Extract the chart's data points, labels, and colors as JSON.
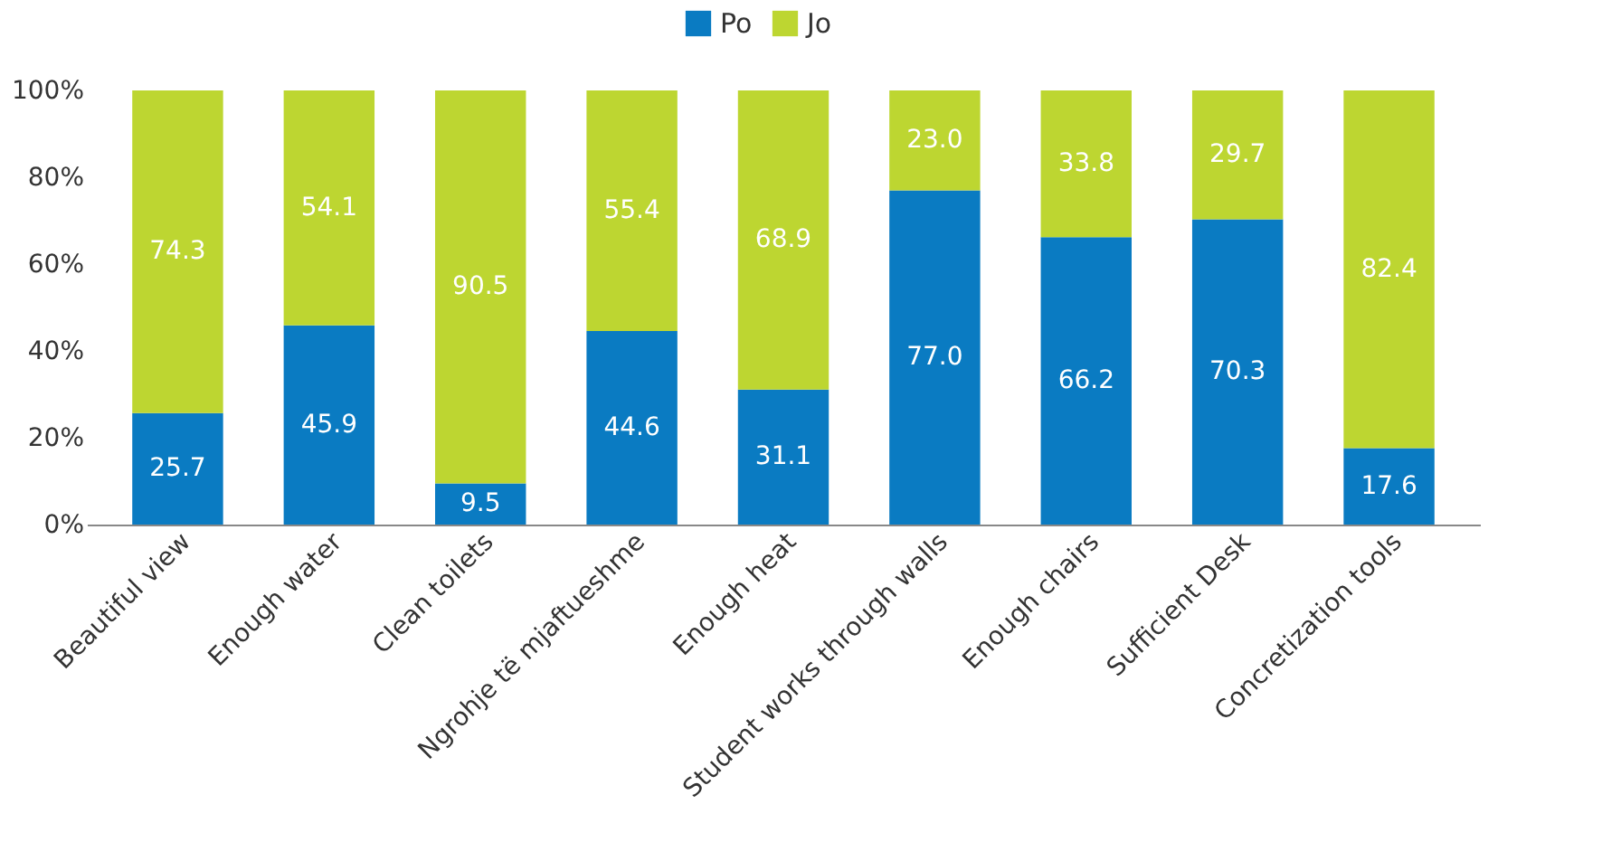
{
  "chart_data": {
    "type": "bar",
    "stacked": true,
    "categories": [
      "Beautiful view",
      "Enough water",
      "Clean toilets",
      "Ngrohje të mjaftueshme",
      "Enough heat",
      "Student works through walls",
      "Enough chairs",
      "Sufficient Desk",
      "Concretization tools"
    ],
    "series": [
      {
        "name": "Po",
        "color": "#0a7bc2",
        "values": [
          25.7,
          45.9,
          9.5,
          44.6,
          31.1,
          77.0,
          66.2,
          70.3,
          17.6
        ],
        "value_labels": [
          "25.7",
          "45.9",
          "9.5",
          "44.6",
          "31.1",
          "77.0",
          "66.2",
          "70.3",
          "17.6"
        ]
      },
      {
        "name": "Jo",
        "color": "#bdd631",
        "values": [
          74.3,
          54.1,
          90.5,
          55.4,
          68.9,
          23.0,
          33.8,
          29.7,
          82.4
        ],
        "value_labels": [
          "74.3",
          "54.1",
          "90.5",
          "55.4",
          "68.9",
          "23.0",
          "33.8",
          "29.7",
          "82.4"
        ]
      }
    ],
    "ylim": [
      0,
      100
    ],
    "yticks": [
      {
        "value": 0,
        "label": "0%"
      },
      {
        "value": 20,
        "label": "20%"
      },
      {
        "value": 40,
        "label": "40%"
      },
      {
        "value": 60,
        "label": "60%"
      },
      {
        "value": 80,
        "label": "80%"
      },
      {
        "value": 100,
        "label": "100%"
      }
    ],
    "legend": "top",
    "grid": false
  }
}
